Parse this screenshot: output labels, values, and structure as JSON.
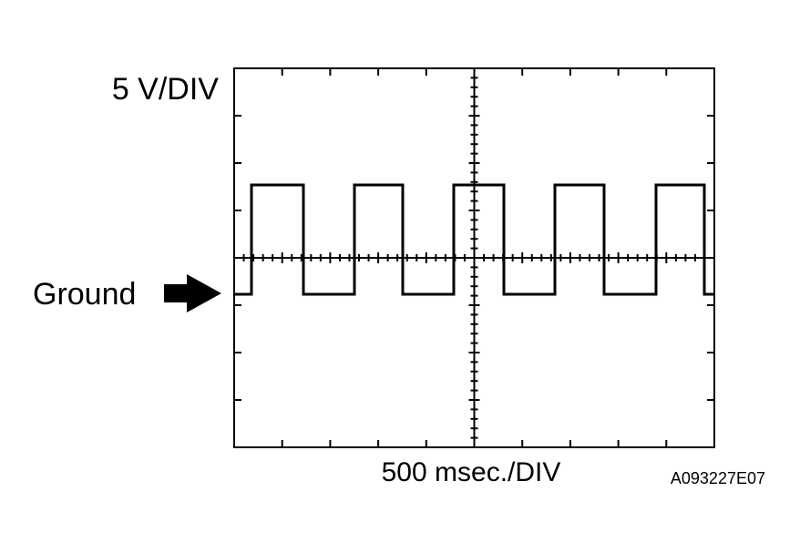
{
  "labels": {
    "volts_per_div": "5 V/DIV",
    "ground": "Ground",
    "time_per_div": "500 msec./DIV",
    "figure_id": "A093227E07"
  }
}
